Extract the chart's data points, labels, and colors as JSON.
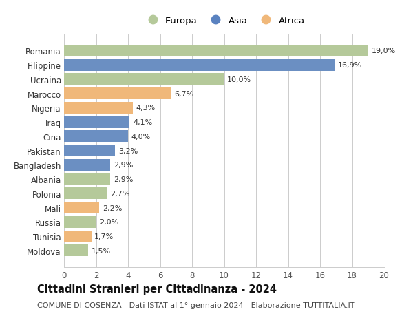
{
  "categories": [
    "Romania",
    "Filippine",
    "Ucraina",
    "Marocco",
    "Nigeria",
    "Iraq",
    "Cina",
    "Pakistan",
    "Bangladesh",
    "Albania",
    "Polonia",
    "Mali",
    "Russia",
    "Tunisia",
    "Moldova"
  ],
  "values": [
    19.0,
    16.9,
    10.0,
    6.7,
    4.3,
    4.1,
    4.0,
    3.2,
    2.9,
    2.9,
    2.7,
    2.2,
    2.0,
    1.7,
    1.5
  ],
  "labels": [
    "19,0%",
    "16,9%",
    "10,0%",
    "6,7%",
    "4,3%",
    "4,1%",
    "4,0%",
    "3,2%",
    "2,9%",
    "2,9%",
    "2,7%",
    "2,2%",
    "2,0%",
    "1,7%",
    "1,5%"
  ],
  "continents": [
    "Europa",
    "Asia",
    "Europa",
    "Africa",
    "Africa",
    "Asia",
    "Asia",
    "Asia",
    "Asia",
    "Europa",
    "Europa",
    "Africa",
    "Europa",
    "Africa",
    "Europa"
  ],
  "colors": {
    "Europa": "#b5c99a",
    "Asia": "#6b8fc2",
    "Africa": "#f0b87a"
  },
  "legend_colors": {
    "Europa": "#b5c99a",
    "Asia": "#5a82c0",
    "Africa": "#f0b87a"
  },
  "xlim": [
    0,
    20
  ],
  "xticks": [
    0,
    2,
    4,
    6,
    8,
    10,
    12,
    14,
    16,
    18,
    20
  ],
  "title": "Cittadini Stranieri per Cittadinanza - 2024",
  "subtitle": "COMUNE DI COSENZA - Dati ISTAT al 1° gennaio 2024 - Elaborazione TUTTITALIA.IT",
  "background_color": "#ffffff",
  "grid_color": "#cccccc",
  "bar_height": 0.82,
  "label_fontsize": 8.0,
  "title_fontsize": 10.5,
  "subtitle_fontsize": 8.0,
  "tick_fontsize": 8.5
}
